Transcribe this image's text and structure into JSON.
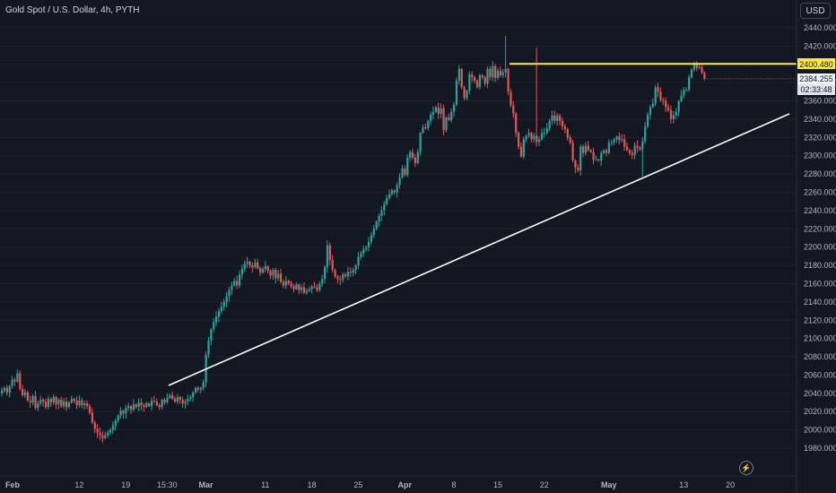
{
  "header": {
    "title": "Gold Spot / U.S. Dollar, 4h, PYTH"
  },
  "price_axis": {
    "currency_button": "USD"
  },
  "levels": {
    "resistance_label": "2400.480",
    "last_price_label": "2384.255",
    "countdown_label": "02:33:48"
  },
  "colors": {
    "background": "#131722",
    "up": "#26a69a",
    "down": "#ef5350",
    "resistance_line": "#ffeb3b",
    "trend_line": "#ffffff",
    "axis_text": "#b2b5be"
  },
  "icons": {
    "bottom_right": "lightning-icon"
  },
  "chart_data": {
    "type": "candlestick",
    "title": "Gold Spot / U.S. Dollar, 4h, PYTH",
    "timeframe": "4h",
    "y_axis": {
      "side": "right",
      "range": [
        1975,
        2445
      ],
      "ticks": [
        "2440.000",
        "2420.000",
        "2400.000",
        "2380.000",
        "2360.000",
        "2340.000",
        "2320.000",
        "2300.000",
        "2280.000",
        "2260.000",
        "2240.000",
        "2220.000",
        "2200.000",
        "2180.000",
        "2160.000",
        "2140.000",
        "2120.000",
        "2100.000",
        "2080.000",
        "2060.000",
        "2040.000",
        "2020.000",
        "2000.000",
        "1980.000"
      ]
    },
    "x_axis": {
      "tick_labels": [
        {
          "label": "Feb",
          "bold": true,
          "bar": 0
        },
        {
          "label": "12",
          "bold": false,
          "bar": 30
        },
        {
          "label": "19",
          "bold": false,
          "bar": 48
        },
        {
          "label": "15:30",
          "bold": false,
          "bar": 64
        },
        {
          "label": "Mar",
          "bold": true,
          "bar": 79
        },
        {
          "label": "11",
          "bold": false,
          "bar": 102
        },
        {
          "label": "18",
          "bold": false,
          "bar": 120
        },
        {
          "label": "25",
          "bold": false,
          "bar": 138
        },
        {
          "label": "Apr",
          "bold": true,
          "bar": 156
        },
        {
          "label": "8",
          "bold": false,
          "bar": 175
        },
        {
          "label": "15",
          "bold": false,
          "bar": 192
        },
        {
          "label": "22",
          "bold": false,
          "bar": 210
        },
        {
          "label": "May",
          "bold": true,
          "bar": 235
        },
        {
          "label": "13",
          "bold": false,
          "bar": 264
        },
        {
          "label": "20",
          "bold": false,
          "bar": 282
        }
      ]
    },
    "closes": [
      2043,
      2046,
      2041,
      2048,
      2055,
      2053,
      2062,
      2045,
      2038,
      2041,
      2032,
      2030,
      2037,
      2024,
      2029,
      2033,
      2031,
      2025,
      2034,
      2030,
      2036,
      2028,
      2033,
      2026,
      2031,
      2025,
      2030,
      2034,
      2032,
      2027,
      2032,
      2027,
      2029,
      2026,
      2019,
      2008,
      2001,
      1997,
      1994,
      1991,
      1994,
      1997,
      2000,
      2005,
      2010,
      2016,
      2021,
      2018,
      2024,
      2026,
      2022,
      2028,
      2025,
      2030,
      2027,
      2025,
      2029,
      2026,
      2032,
      2031,
      2027,
      2025,
      2033,
      2030,
      2035,
      2038,
      2034,
      2031,
      2036,
      2033,
      2029,
      2031,
      2034,
      2036,
      2041,
      2046,
      2044,
      2046,
      2052,
      2082,
      2098,
      2110,
      2118,
      2124,
      2130,
      2135,
      2140,
      2146,
      2153,
      2158,
      2163,
      2158,
      2170,
      2176,
      2182,
      2184,
      2180,
      2178,
      2183,
      2177,
      2172,
      2176,
      2179,
      2174,
      2169,
      2175,
      2166,
      2171,
      2162,
      2158,
      2163,
      2160,
      2157,
      2154,
      2159,
      2153,
      2156,
      2150,
      2152,
      2154,
      2157,
      2156,
      2153,
      2160,
      2165,
      2178,
      2202,
      2186,
      2175,
      2168,
      2165,
      2164,
      2170,
      2168,
      2173,
      2172,
      2175,
      2180,
      2189,
      2193,
      2198,
      2200,
      2206,
      2213,
      2220,
      2228,
      2234,
      2240,
      2247,
      2254,
      2258,
      2262,
      2260,
      2268,
      2276,
      2286,
      2279,
      2298,
      2304,
      2298,
      2292,
      2304,
      2325,
      2331,
      2330,
      2338,
      2345,
      2348,
      2353,
      2346,
      2352,
      2328,
      2342,
      2339,
      2348,
      2356,
      2382,
      2395,
      2375,
      2363,
      2371,
      2389,
      2386,
      2382,
      2375,
      2388,
      2386,
      2379,
      2395,
      2386,
      2398,
      2385,
      2393,
      2388,
      2391,
      2395,
      2370,
      2355,
      2346,
      2325,
      2310,
      2299,
      2318,
      2322,
      2325,
      2318,
      2322,
      2315,
      2318,
      2325,
      2325,
      2330,
      2338,
      2344,
      2338,
      2344,
      2338,
      2332,
      2329,
      2320,
      2314,
      2295,
      2287,
      2284,
      2310,
      2303,
      2311,
      2306,
      2304,
      2296,
      2296,
      2295,
      2303,
      2306,
      2303,
      2314,
      2315,
      2318,
      2321,
      2317,
      2318,
      2310,
      2306,
      2303,
      2301,
      2311,
      2309,
      2307,
      2316,
      2332,
      2345,
      2353,
      2357,
      2375,
      2370,
      2361,
      2360,
      2353,
      2350,
      2340,
      2344,
      2348,
      2360,
      2366,
      2372,
      2372,
      2386,
      2394,
      2401,
      2396,
      2397,
      2391,
      2384.255
    ]
  }
}
